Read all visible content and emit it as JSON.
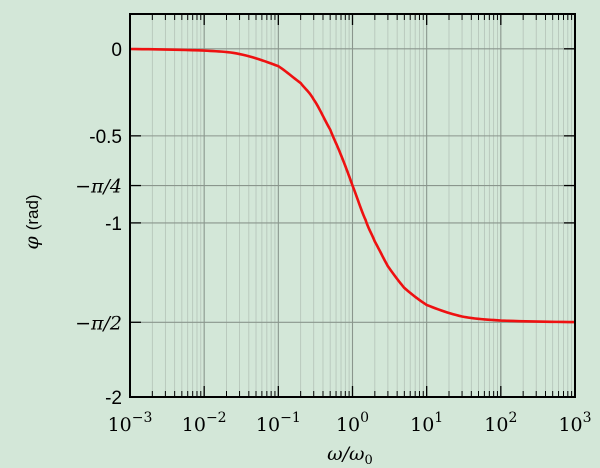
{
  "chart_data": {
    "type": "line",
    "title": "",
    "xlabel": "ω/ω₀",
    "ylabel": "φ (rad)",
    "x_scale": "log",
    "xlim": [
      0.001,
      1000
    ],
    "ylim": [
      -2,
      0.2
    ],
    "grid": true,
    "x_ticks": [
      {
        "value": 0.001,
        "base": "10",
        "exp": "−3"
      },
      {
        "value": 0.01,
        "base": "10",
        "exp": "−2"
      },
      {
        "value": 0.1,
        "base": "10",
        "exp": "−1"
      },
      {
        "value": 1,
        "base": "10",
        "exp": "0"
      },
      {
        "value": 10,
        "base": "10",
        "exp": "1"
      },
      {
        "value": 100,
        "base": "10",
        "exp": "2"
      },
      {
        "value": 1000,
        "base": "10",
        "exp": "3"
      }
    ],
    "y_ticks": [
      {
        "value": 0,
        "label": "0",
        "math": false
      },
      {
        "value": -0.5,
        "label": "-0.5",
        "math": false
      },
      {
        "value": -0.7854,
        "label": "−π/4",
        "math": true
      },
      {
        "value": -1,
        "label": "-1",
        "math": false
      },
      {
        "value": -1.5708,
        "label": "−π/2",
        "math": true
      },
      {
        "value": -2,
        "label": "-2",
        "math": false
      }
    ],
    "series": [
      {
        "color": "#ee1111",
        "x": [
          0.001,
          0.01,
          0.03,
          0.1,
          0.2,
          0.3,
          0.5,
          0.7,
          1,
          1.5,
          2,
          3,
          5,
          10,
          30,
          100,
          1000
        ],
        "y": [
          -0.001,
          -0.01,
          -0.03,
          -0.0997,
          -0.197,
          -0.2915,
          -0.4636,
          -0.6107,
          -0.7854,
          -0.9828,
          -1.1071,
          -1.249,
          -1.3734,
          -1.4711,
          -1.5375,
          -1.5608,
          -1.5698
        ]
      }
    ]
  }
}
